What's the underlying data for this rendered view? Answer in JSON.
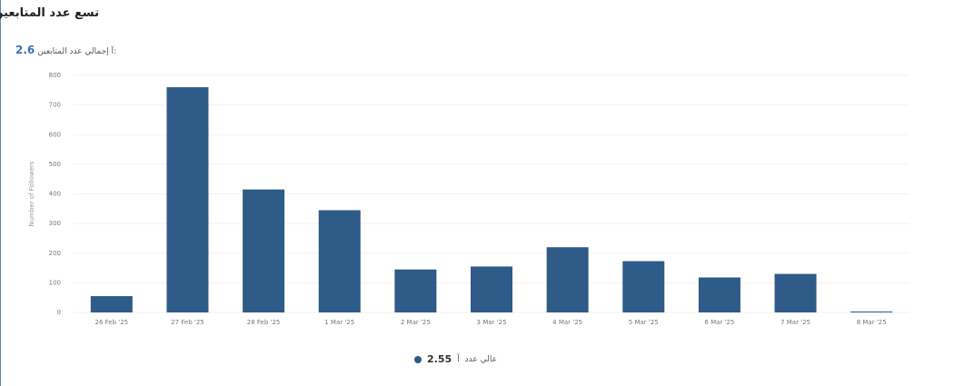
{
  "title": "تسع عدد المتابعين",
  "total": {
    "value": "2.6",
    "unit": "آ",
    "label": "إجمالي عدد المتابعين:"
  },
  "legend": {
    "value": "2.55",
    "unit": "آ",
    "label": "عالي عدد"
  },
  "colors": {
    "bar": "#2e5b87",
    "accent": "#3d6fb0",
    "border": "#5b84b8"
  },
  "chart_data": {
    "type": "bar",
    "categories": [
      "26 Feb '25",
      "27 Feb '25",
      "28 Feb '25",
      "1 Mar '25",
      "2 Mar '25",
      "3 Mar '25",
      "4 Mar '25",
      "5 Mar '25",
      "6 Mar '25",
      "7 Mar '25",
      "8 Mar '25"
    ],
    "values": [
      55,
      760,
      415,
      345,
      145,
      155,
      220,
      173,
      118,
      130,
      3
    ],
    "ylabel": "Number of Followers",
    "ylim": [
      0,
      800
    ],
    "yticks": [
      0,
      100,
      200,
      300,
      400,
      500,
      600,
      700,
      800
    ],
    "grid": true
  }
}
